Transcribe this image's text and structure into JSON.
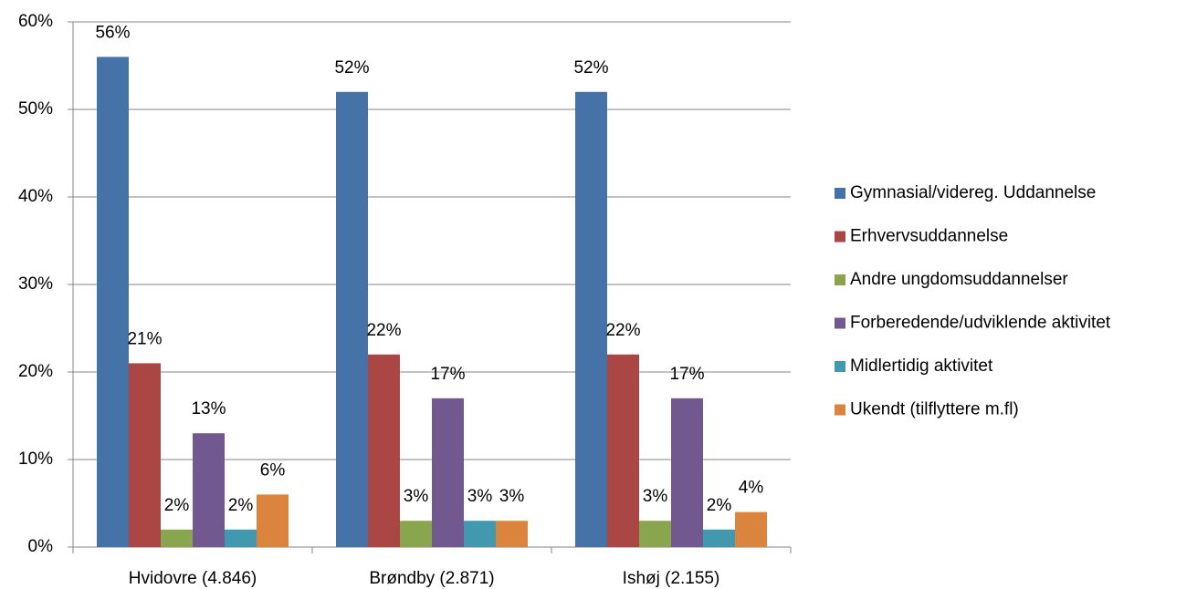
{
  "chart_data": {
    "type": "bar",
    "categories": [
      "Hvidovre (4.846)",
      "Brøndby (2.871)",
      "Ishøj (2.155)"
    ],
    "series": [
      {
        "name": "Gymnasial/videreg. Uddannelse",
        "color": "#4572a7",
        "values": [
          56,
          52,
          52
        ],
        "value_labels": [
          "56%",
          "52%",
          "52%"
        ]
      },
      {
        "name": "Erhvervsuddannelse",
        "color": "#aa4643",
        "values": [
          21,
          22,
          22
        ],
        "value_labels": [
          "21%",
          "22%",
          "22%"
        ]
      },
      {
        "name": "Andre ungdomsuddannelser",
        "color": "#89a54e",
        "values": [
          2,
          3,
          3
        ],
        "value_labels": [
          "2%",
          "3%",
          "3%"
        ]
      },
      {
        "name": "Forberedende/udviklende aktivitet",
        "color": "#71588f",
        "values": [
          13,
          17,
          17
        ],
        "value_labels": [
          "13%",
          "17%",
          "17%"
        ]
      },
      {
        "name": "Midlertidig aktivitet",
        "color": "#4198af",
        "values": [
          2,
          3,
          2
        ],
        "value_labels": [
          "2%",
          "3%",
          "2%"
        ]
      },
      {
        "name": "Ukendt (tilflyttere m.fl)",
        "color": "#db843d",
        "values": [
          6,
          3,
          4
        ],
        "value_labels": [
          "6%",
          "3%",
          "4%"
        ]
      }
    ],
    "ylim": [
      0,
      60
    ],
    "yticks": [
      {
        "value": 0,
        "label": "0%"
      },
      {
        "value": 10,
        "label": "10%"
      },
      {
        "value": 20,
        "label": "20%"
      },
      {
        "value": 30,
        "label": "30%"
      },
      {
        "value": 40,
        "label": "40%"
      },
      {
        "value": 50,
        "label": "50%"
      },
      {
        "value": 60,
        "label": "60%"
      }
    ],
    "grid": true,
    "legend": "right"
  }
}
